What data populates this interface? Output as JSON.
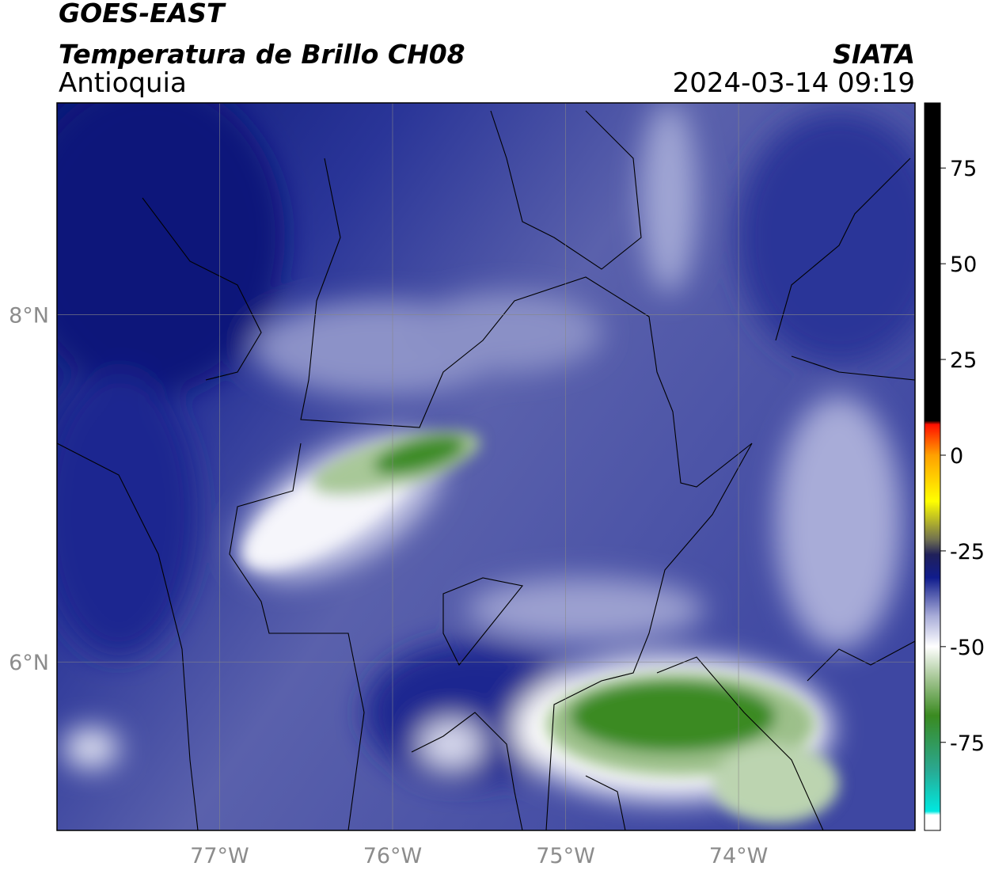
{
  "header": {
    "satellite": "GOES-EAST",
    "product": "Temperatura de Brillo CH08",
    "region": "Antioquia",
    "source": "SIATA",
    "datetime": "2024-03-14 09:19"
  },
  "map": {
    "xlim": [
      -77.94,
      -72.98
    ],
    "ylim": [
      5.03,
      9.22
    ],
    "xticks": [
      {
        "value": -77,
        "label": "77°W"
      },
      {
        "value": -76,
        "label": "76°W"
      },
      {
        "value": -75,
        "label": "75°W"
      },
      {
        "value": -74,
        "label": "74°W"
      }
    ],
    "yticks": [
      {
        "value": 8,
        "label": "8°N"
      },
      {
        "value": 6,
        "label": "6°N"
      }
    ],
    "grid": true
  },
  "colorbar": {
    "lim": [
      -98,
      92
    ],
    "ticks": [
      75,
      50,
      25,
      0,
      -25,
      -50,
      -75
    ],
    "colormap": [
      {
        "value": -98,
        "color": "#ffffff"
      },
      {
        "value": -94,
        "color": "#ffffff"
      },
      {
        "value": -93,
        "color": "#00e8e0"
      },
      {
        "value": -82,
        "color": "#2aa890"
      },
      {
        "value": -68,
        "color": "#3a8a20"
      },
      {
        "value": -58,
        "color": "#a8c898"
      },
      {
        "value": -50,
        "color": "#ffffff"
      },
      {
        "value": -42,
        "color": "#a8acd8"
      },
      {
        "value": -32,
        "color": "#101c8c"
      },
      {
        "value": -26,
        "color": "#20205a"
      },
      {
        "value": -22,
        "color": "#707050"
      },
      {
        "value": -12,
        "color": "#ffff00"
      },
      {
        "value": 0,
        "color": "#ffa000"
      },
      {
        "value": 8,
        "color": "#ff1000"
      },
      {
        "value": 9,
        "color": "#000000"
      },
      {
        "value": 92,
        "color": "#000000"
      }
    ]
  }
}
